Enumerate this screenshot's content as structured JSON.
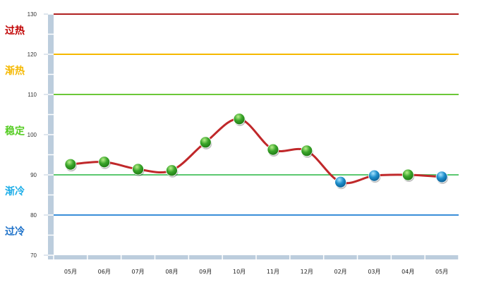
{
  "chart_data": {
    "type": "line",
    "categories": [
      "05月",
      "06月",
      "07月",
      "08月",
      "09月",
      "10月",
      "11月",
      "12月",
      "02月",
      "03月",
      "04月",
      "05月"
    ],
    "values": [
      92.6,
      93.2,
      91.4,
      91.1,
      98.1,
      103.9,
      96.3,
      96.0,
      88.2,
      89.8,
      90.0,
      89.5
    ],
    "ylim": [
      70,
      130
    ],
    "yticks": [
      70,
      80,
      90,
      100,
      110,
      120,
      130
    ],
    "line_color": "#c0282a",
    "marker_colors": {
      "above": "#3aa52a",
      "below": "#1e8fcc"
    },
    "thresholds": [
      {
        "value": 130,
        "color": "#b02020"
      },
      {
        "value": 120,
        "color": "#f5b800"
      },
      {
        "value": 110,
        "color": "#6cc838"
      },
      {
        "value": 90,
        "color": "#5cc870"
      },
      {
        "value": 80,
        "color": "#3a8ed8"
      }
    ],
    "zones": [
      {
        "label": "过热",
        "value": 126,
        "color": "#c00000"
      },
      {
        "label": "渐热",
        "value": 116,
        "color": "#f5b800"
      },
      {
        "label": "稳定",
        "value": 101,
        "color": "#55cc22"
      },
      {
        "label": "渐冷",
        "value": 86,
        "color": "#1eaee8"
      },
      {
        "label": "过冷",
        "value": 76,
        "color": "#1a6fc8"
      }
    ]
  }
}
